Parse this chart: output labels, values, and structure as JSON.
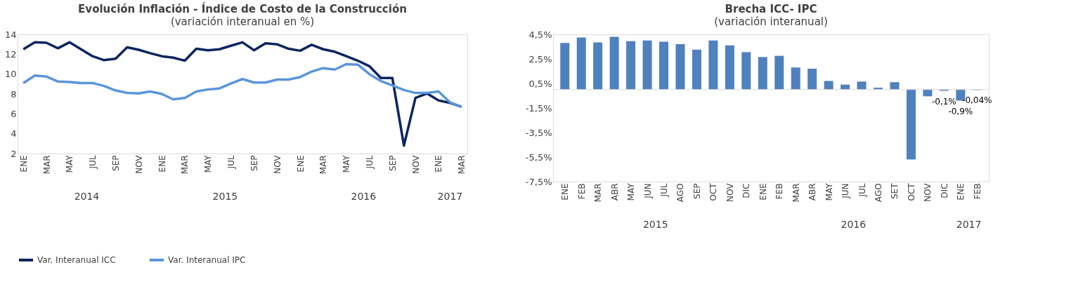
{
  "chart_data": [
    {
      "type": "line",
      "title": "Evolución Inflación - Índice de Costo de la Construcción",
      "subtitle": "(variación interanual en %)",
      "categories": [
        "ENE",
        null,
        "MAR",
        null,
        "MAY",
        null,
        "JUL",
        null,
        "SEP",
        null,
        "NOV",
        null,
        "ENE",
        null,
        "MAR",
        null,
        "MAY",
        null,
        "JUL",
        null,
        "SEP",
        null,
        "NOV",
        null,
        "ENE",
        null,
        "MAR",
        null,
        "MAY",
        null,
        "JUL",
        null,
        "SEP",
        null,
        "NOV",
        null,
        "ENE",
        null,
        "MAR"
      ],
      "series": [
        {
          "name": "Var. Interanual ICC",
          "color": "#0b2560",
          "values": [
            12.5,
            13.2,
            13.15,
            12.6,
            13.2,
            12.5,
            11.8,
            11.4,
            11.55,
            12.7,
            12.45,
            12.1,
            11.8,
            11.65,
            11.35,
            12.55,
            12.4,
            12.5,
            12.85,
            13.2,
            12.4,
            13.1,
            13.0,
            12.55,
            12.35,
            12.95,
            12.5,
            12.25,
            11.8,
            11.35,
            10.8,
            9.6,
            9.6,
            2.8,
            7.6,
            8.05,
            7.35,
            7.1,
            6.7
          ]
        },
        {
          "name": "Var. Interanual IPC",
          "color": "#5b95db",
          "values": [
            9.1,
            9.85,
            9.75,
            9.25,
            9.2,
            9.1,
            9.1,
            8.8,
            8.35,
            8.1,
            8.05,
            8.25,
            8.0,
            7.45,
            7.6,
            8.25,
            8.45,
            8.55,
            9.05,
            9.5,
            9.15,
            9.15,
            9.45,
            9.45,
            9.7,
            10.25,
            10.6,
            10.45,
            11.0,
            10.95,
            10.0,
            9.3,
            8.85,
            8.4,
            8.1,
            8.1,
            8.25,
            7.15,
            6.7
          ]
        }
      ],
      "ylim": [
        2,
        14
      ],
      "yticks": [
        2,
        4,
        6,
        8,
        10,
        12,
        14
      ],
      "legend": "bottom",
      "annotations": [
        "2014",
        "2015",
        "2016",
        "2017"
      ]
    },
    {
      "type": "bar",
      "title": "Brecha ICC- IPC",
      "subtitle": "(variación interanual)",
      "categories": [
        "ENE",
        "FEB",
        "MAR",
        "ABR",
        "MAY",
        "JUN",
        "JUL",
        "AGO",
        "SEP",
        "OCT",
        "NOV",
        "DIC",
        "ENE",
        "FEB",
        "MAR",
        "ABR",
        "MAY",
        "JUN",
        "JUL",
        "AGO",
        "SET",
        "OCT",
        "NOV",
        "DIC",
        "ENE",
        "FEB"
      ],
      "values": [
        3.8,
        4.25,
        3.85,
        4.3,
        3.95,
        4.0,
        3.9,
        3.7,
        3.25,
        4.0,
        3.6,
        3.05,
        2.65,
        2.75,
        1.8,
        1.7,
        0.7,
        0.4,
        0.65,
        0.15,
        0.6,
        -5.7,
        -0.55,
        -0.1,
        -0.9,
        -0.04
      ],
      "value_labels": [
        null,
        null,
        null,
        null,
        null,
        null,
        null,
        null,
        null,
        null,
        null,
        null,
        null,
        null,
        null,
        null,
        null,
        null,
        null,
        null,
        null,
        null,
        null,
        "-0,1%",
        "-0,9%",
        "-0,04%"
      ],
      "color": "#4f81bd",
      "ylim": [
        -7.5,
        4.5
      ],
      "yticks": [
        {
          "value": -7.5,
          "label": "-7,5%"
        },
        {
          "value": -5.5,
          "label": "-5,5%"
        },
        {
          "value": -3.5,
          "label": "-3,5%"
        },
        {
          "value": -1.5,
          "label": "-1,5%"
        },
        {
          "value": 0.5,
          "label": "0,5%"
        },
        {
          "value": 2.5,
          "label": "2,5%"
        },
        {
          "value": 4.5,
          "label": "4,5%"
        }
      ],
      "annotations": [
        "2015",
        "2016",
        "2017"
      ]
    }
  ]
}
